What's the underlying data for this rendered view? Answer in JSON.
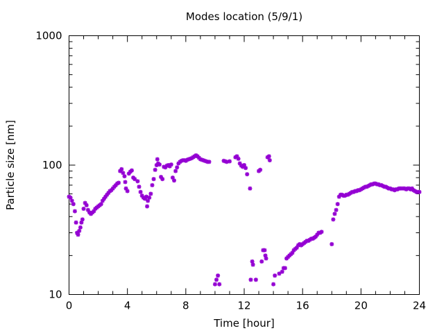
{
  "chart_data": {
    "type": "scatter",
    "title": "Modes location (5/9/1)",
    "xlabel": "Time [hour]",
    "ylabel": "Particle size [nm]",
    "xlim": [
      0,
      24
    ],
    "ylim": [
      10,
      1000
    ],
    "yscale": "log",
    "xticks": [
      "0",
      "4",
      "8",
      "12",
      "16",
      "20",
      "24"
    ],
    "yticks": [
      "10",
      "100",
      "1000"
    ],
    "grid": false,
    "marker_color": "#9400d3",
    "series": [
      {
        "points": [
          [
            0.0,
            57
          ],
          [
            0.1,
            56
          ],
          [
            0.2,
            53
          ],
          [
            0.3,
            50
          ],
          [
            0.4,
            44
          ],
          [
            0.48,
            36
          ],
          [
            0.55,
            30
          ],
          [
            0.62,
            29
          ],
          [
            0.7,
            31
          ],
          [
            0.78,
            33
          ],
          [
            0.85,
            36
          ],
          [
            0.92,
            38
          ],
          [
            1.0,
            46
          ],
          [
            1.1,
            51
          ],
          [
            1.2,
            49
          ],
          [
            1.3,
            45
          ],
          [
            1.4,
            43
          ],
          [
            1.5,
            42
          ],
          [
            1.6,
            43
          ],
          [
            1.7,
            44
          ],
          [
            1.8,
            46
          ],
          [
            1.9,
            47
          ],
          [
            2.0,
            48
          ],
          [
            2.1,
            49
          ],
          [
            2.2,
            50
          ],
          [
            2.3,
            53
          ],
          [
            2.4,
            55
          ],
          [
            2.5,
            57
          ],
          [
            2.6,
            59
          ],
          [
            2.7,
            61
          ],
          [
            2.8,
            63
          ],
          [
            2.9,
            64
          ],
          [
            3.0,
            66
          ],
          [
            3.1,
            68
          ],
          [
            3.2,
            70
          ],
          [
            3.3,
            72
          ],
          [
            3.4,
            73
          ],
          [
            3.5,
            90
          ],
          [
            3.6,
            93
          ],
          [
            3.7,
            87
          ],
          [
            3.8,
            82
          ],
          [
            3.85,
            74
          ],
          [
            3.9,
            66
          ],
          [
            4.0,
            63
          ],
          [
            4.1,
            86
          ],
          [
            4.2,
            89
          ],
          [
            4.3,
            91
          ],
          [
            4.4,
            80
          ],
          [
            4.5,
            78
          ],
          [
            4.7,
            75
          ],
          [
            4.8,
            68
          ],
          [
            4.9,
            62
          ],
          [
            5.0,
            58
          ],
          [
            5.1,
            56
          ],
          [
            5.2,
            55
          ],
          [
            5.3,
            57
          ],
          [
            5.35,
            48
          ],
          [
            5.4,
            53
          ],
          [
            5.5,
            56
          ],
          [
            5.6,
            60
          ],
          [
            5.7,
            70
          ],
          [
            5.8,
            78
          ],
          [
            5.9,
            92
          ],
          [
            6.0,
            100
          ],
          [
            6.05,
            111
          ],
          [
            6.1,
            103
          ],
          [
            6.2,
            101
          ],
          [
            6.3,
            81
          ],
          [
            6.4,
            78
          ],
          [
            6.5,
            97
          ],
          [
            6.6,
            96
          ],
          [
            6.7,
            99
          ],
          [
            6.8,
            100
          ],
          [
            6.9,
            98
          ],
          [
            7.0,
            101
          ],
          [
            7.1,
            80
          ],
          [
            7.2,
            76
          ],
          [
            7.3,
            90
          ],
          [
            7.4,
            96
          ],
          [
            7.5,
            103
          ],
          [
            7.6,
            106
          ],
          [
            7.7,
            108
          ],
          [
            7.8,
            109
          ],
          [
            7.9,
            109
          ],
          [
            8.0,
            108
          ],
          [
            8.1,
            110
          ],
          [
            8.2,
            111
          ],
          [
            8.3,
            112
          ],
          [
            8.4,
            113
          ],
          [
            8.5,
            115
          ],
          [
            8.6,
            117
          ],
          [
            8.7,
            119
          ],
          [
            8.8,
            117
          ],
          [
            8.9,
            114
          ],
          [
            9.0,
            111
          ],
          [
            9.1,
            110
          ],
          [
            9.2,
            109
          ],
          [
            9.3,
            108
          ],
          [
            9.4,
            107
          ],
          [
            9.5,
            106
          ],
          [
            9.6,
            106
          ],
          [
            10.0,
            12
          ],
          [
            10.1,
            13
          ],
          [
            10.2,
            14
          ],
          [
            10.3,
            12
          ],
          [
            10.6,
            108
          ],
          [
            10.7,
            107
          ],
          [
            10.8,
            106
          ],
          [
            11.0,
            107
          ],
          [
            11.4,
            115
          ],
          [
            11.5,
            117
          ],
          [
            11.6,
            112
          ],
          [
            11.7,
            103
          ],
          [
            11.8,
            99
          ],
          [
            11.9,
            97
          ],
          [
            12.0,
            100
          ],
          [
            12.1,
            95
          ],
          [
            12.2,
            85
          ],
          [
            12.4,
            66
          ],
          [
            12.45,
            13
          ],
          [
            12.55,
            18
          ],
          [
            12.6,
            17
          ],
          [
            12.8,
            13
          ],
          [
            13.0,
            90
          ],
          [
            13.1,
            92
          ],
          [
            13.2,
            18
          ],
          [
            13.3,
            22
          ],
          [
            13.4,
            22
          ],
          [
            13.45,
            20
          ],
          [
            13.5,
            19
          ],
          [
            13.6,
            115
          ],
          [
            13.7,
            117
          ],
          [
            13.75,
            109
          ],
          [
            14.0,
            12
          ],
          [
            14.1,
            14
          ],
          [
            14.4,
            14.5
          ],
          [
            14.6,
            15
          ],
          [
            14.7,
            16
          ],
          [
            14.8,
            16
          ],
          [
            14.9,
            19
          ],
          [
            15.0,
            19.5
          ],
          [
            15.1,
            20
          ],
          [
            15.2,
            20.5
          ],
          [
            15.3,
            21
          ],
          [
            15.4,
            22
          ],
          [
            15.5,
            22.5
          ],
          [
            15.6,
            23
          ],
          [
            15.7,
            24
          ],
          [
            15.8,
            24.5
          ],
          [
            15.9,
            24
          ],
          [
            16.0,
            24.5
          ],
          [
            16.1,
            25
          ],
          [
            16.2,
            25.5
          ],
          [
            16.3,
            26
          ],
          [
            16.4,
            26
          ],
          [
            16.5,
            26.5
          ],
          [
            16.6,
            27
          ],
          [
            16.7,
            27
          ],
          [
            16.8,
            27.5
          ],
          [
            16.9,
            28
          ],
          [
            17.0,
            29
          ],
          [
            17.1,
            30
          ],
          [
            17.2,
            30
          ],
          [
            17.3,
            30.5
          ],
          [
            18.0,
            24.5
          ],
          [
            18.1,
            38
          ],
          [
            18.2,
            42
          ],
          [
            18.3,
            45
          ],
          [
            18.4,
            50
          ],
          [
            18.5,
            57
          ],
          [
            18.6,
            59
          ],
          [
            18.7,
            59
          ],
          [
            18.8,
            58
          ],
          [
            18.9,
            58
          ],
          [
            19.0,
            59
          ],
          [
            19.1,
            59
          ],
          [
            19.2,
            60
          ],
          [
            19.3,
            61
          ],
          [
            19.4,
            62
          ],
          [
            19.5,
            62
          ],
          [
            19.6,
            63
          ],
          [
            19.7,
            63
          ],
          [
            19.8,
            64
          ],
          [
            19.9,
            64
          ],
          [
            20.0,
            65
          ],
          [
            20.1,
            66
          ],
          [
            20.2,
            67
          ],
          [
            20.3,
            68
          ],
          [
            20.4,
            68
          ],
          [
            20.5,
            69
          ],
          [
            20.6,
            70
          ],
          [
            20.7,
            71
          ],
          [
            20.8,
            71
          ],
          [
            20.9,
            72
          ],
          [
            21.0,
            72
          ],
          [
            21.1,
            71
          ],
          [
            21.2,
            71
          ],
          [
            21.3,
            70
          ],
          [
            21.4,
            70
          ],
          [
            21.5,
            69
          ],
          [
            21.6,
            68
          ],
          [
            21.7,
            68
          ],
          [
            21.8,
            67
          ],
          [
            21.9,
            66
          ],
          [
            22.0,
            66
          ],
          [
            22.1,
            65
          ],
          [
            22.2,
            65
          ],
          [
            22.3,
            64
          ],
          [
            22.4,
            65
          ],
          [
            22.5,
            65
          ],
          [
            22.6,
            66
          ],
          [
            22.7,
            66
          ],
          [
            22.8,
            66
          ],
          [
            22.9,
            66
          ],
          [
            23.0,
            66
          ],
          [
            23.1,
            65
          ],
          [
            23.2,
            66
          ],
          [
            23.3,
            66
          ],
          [
            23.4,
            65
          ],
          [
            23.5,
            66
          ],
          [
            23.6,
            64
          ],
          [
            23.7,
            63
          ],
          [
            23.8,
            62
          ],
          [
            23.9,
            62
          ],
          [
            24.0,
            62
          ]
        ]
      }
    ]
  }
}
